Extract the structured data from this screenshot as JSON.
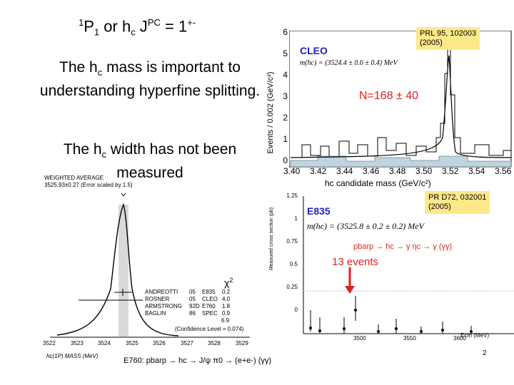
{
  "title": {
    "part1": "1",
    "part2": "P",
    "part3": "1",
    "part4": " or h",
    "part5": "c",
    "part6": "  J",
    "part7": "PC",
    "part8": " = 1",
    "part9": "+-"
  },
  "para1": {
    "a": "The h",
    "b": "c",
    "c": " mass is important to understanding hyperfine splitting."
  },
  "para2": {
    "a": "The h",
    "b": "c",
    "c": " width has not been measured"
  },
  "pdg": {
    "header": "WEIGHTED AVERAGE",
    "value": "3525.93±0.27 (Error scaled by 1.5)",
    "chi2_label": "χ",
    "chi2_sup": "2",
    "rows": [
      {
        "author": "ANDREOTTI",
        "year": "05",
        "exp": "E835",
        "chi": "0.2"
      },
      {
        "author": "ROSNER",
        "year": "05",
        "exp": "CLEO",
        "chi": "4.0"
      },
      {
        "author": "ARMSTRONG",
        "year": "92D",
        "exp": "E760",
        "chi": "1.8"
      },
      {
        "author": "BAGLIN",
        "year": "86",
        "exp": "SPEC",
        "chi": "0.9"
      }
    ],
    "chi_total": "6.9",
    "confidence": "(Confidence Level = 0.074)",
    "xticks": [
      "3522",
      "3523",
      "3524",
      "3525",
      "3526",
      "3527",
      "3528",
      "3529"
    ],
    "xlabel": "hc(1P) MASS (MeV)"
  },
  "cleo": {
    "label": "CLEO",
    "mass": "m(hc) = (3524.4 ± 0.6 ± 0.4) MeV",
    "n": "N=168 ± 40",
    "ref": [
      "PRL 95, 102003",
      "(2005)"
    ],
    "ylabel": "Events / 0.002 (GeV/c²)",
    "yticks": [
      "6",
      "5",
      "4",
      "3",
      "2",
      "1",
      "0"
    ],
    "xticks": [
      "3.40",
      "3.42",
      "3.44",
      "3.46",
      "3.48",
      "3.50",
      "3.52",
      "3.54",
      "3.56"
    ],
    "xlabel": "hc candidate mass (GeV/c²)"
  },
  "e835": {
    "label": "E835",
    "mass": "m(hc) = (3525.8 ± 0.2 ± 0.2) MeV",
    "ref": [
      "PR D72, 032001",
      "(2005)"
    ],
    "decay": "pbarp → hc → γ ηc → γ (γγ)",
    "events": "13 events",
    "ylabel": "Measured cross section (pb)",
    "yticks": [
      "1.25",
      "1",
      "0.75",
      "0.5",
      "0.25",
      "0"
    ],
    "xticks": [
      "3500",
      "3550",
      "3600"
    ],
    "xlabel": "Ecm (MeV)"
  },
  "footer": "E760: pbarp → hc → J/ψ π0 → (e+e-) (γγ)",
  "page_num": "2",
  "colors": {
    "arrow": "#e0201c",
    "cleo_text": "#2222bb",
    "n_text": "#e0201c",
    "ref_bg": "#fde98a"
  }
}
